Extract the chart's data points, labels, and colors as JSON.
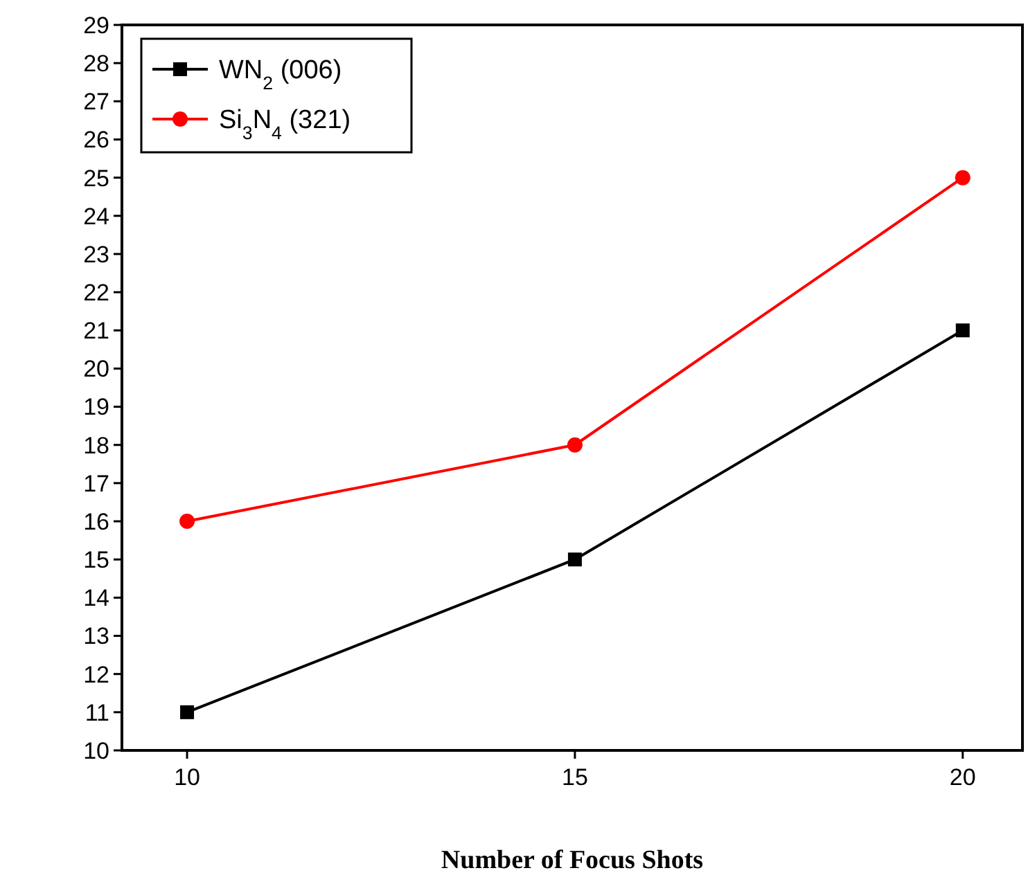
{
  "chart_data": {
    "type": "line",
    "xlabel": "Number of Focus Shots",
    "x": [
      10,
      15,
      20
    ],
    "xlim": [
      9.16,
      20.77
    ],
    "xticks": [
      10,
      15,
      20
    ],
    "ylim": [
      10,
      29
    ],
    "yticks": [
      10,
      11,
      12,
      13,
      14,
      15,
      16,
      17,
      18,
      19,
      20,
      21,
      22,
      23,
      24,
      25,
      26,
      27,
      28,
      29
    ],
    "grid": false,
    "legend": "top left",
    "line_style": "solid",
    "series": [
      {
        "name": "WN$_{2}$ (006)",
        "color": "#000000",
        "marker": "square",
        "values": [
          11,
          15,
          21
        ]
      },
      {
        "name": "Si$_{3}$N$_{4}$ (321)",
        "color": "#ff0000",
        "marker": "circle",
        "values": [
          16,
          18,
          25
        ]
      }
    ]
  }
}
